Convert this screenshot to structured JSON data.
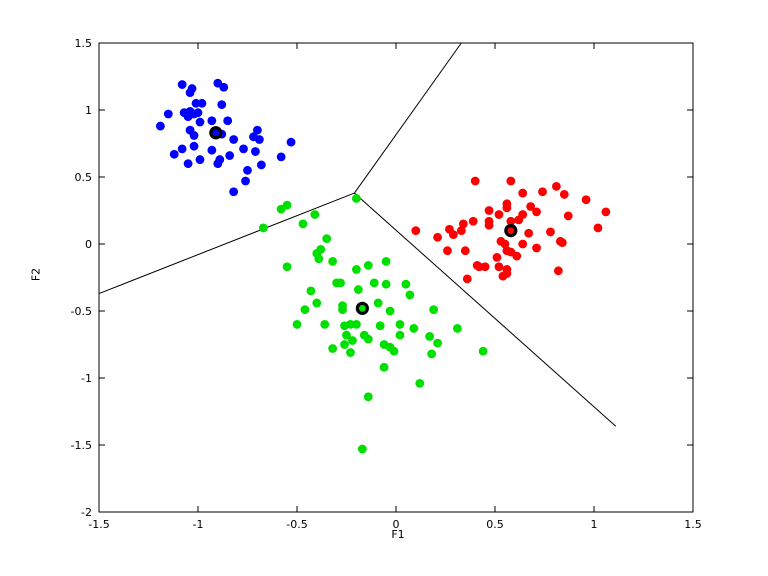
{
  "figure": {
    "background_color": "#ffffff",
    "frame_color": "#000000",
    "boundary_line_color": "#000000"
  },
  "chart_data": {
    "type": "scatter",
    "title": "",
    "xlabel": "F1",
    "ylabel": "F2",
    "xlim": [
      -1.5,
      1.5
    ],
    "ylim": [
      -2,
      1.5
    ],
    "grid": false,
    "legend": "none",
    "x_ticks": [
      -1.5,
      -1,
      -0.5,
      0,
      0.5,
      1,
      1.5
    ],
    "x_tick_labels": [
      "-1.5",
      "-1",
      "-0.5",
      "0",
      "0.5",
      "1",
      "1.5"
    ],
    "y_ticks": [
      -2,
      -1.5,
      -1,
      -0.5,
      0,
      0.5,
      1,
      1.5
    ],
    "y_tick_labels": [
      "-2",
      "-1.5",
      "-1",
      "-0.5",
      "0",
      "0.5",
      "1",
      "1.5"
    ],
    "series": [
      {
        "name": "cluster-blue",
        "color": "#0000FF",
        "points": [
          [
            -1.08,
            1.19
          ],
          [
            -1.03,
            1.16
          ],
          [
            -1.04,
            1.13
          ],
          [
            -0.9,
            1.2
          ],
          [
            -0.87,
            1.17
          ],
          [
            -1.01,
            1.05
          ],
          [
            -0.98,
            1.05
          ],
          [
            -0.88,
            1.04
          ],
          [
            -1.07,
            0.98
          ],
          [
            -1.04,
            0.99
          ],
          [
            -1.02,
            0.97
          ],
          [
            -1.05,
            0.95
          ],
          [
            -1.0,
            0.98
          ],
          [
            -1.15,
            0.97
          ],
          [
            -1.19,
            0.88
          ],
          [
            -0.99,
            0.91
          ],
          [
            -0.93,
            0.92
          ],
          [
            -0.85,
            0.92
          ],
          [
            -1.04,
            0.85
          ],
          [
            -1.02,
            0.81
          ],
          [
            -0.88,
            0.82
          ],
          [
            -0.82,
            0.78
          ],
          [
            -0.72,
            0.8
          ],
          [
            -0.7,
            0.85
          ],
          [
            -0.69,
            0.78
          ],
          [
            -0.53,
            0.76
          ],
          [
            -1.02,
            0.73
          ],
          [
            -1.08,
            0.71
          ],
          [
            -1.12,
            0.67
          ],
          [
            -0.93,
            0.7
          ],
          [
            -0.84,
            0.66
          ],
          [
            -0.77,
            0.71
          ],
          [
            -0.71,
            0.69
          ],
          [
            -0.58,
            0.65
          ],
          [
            -1.05,
            0.6
          ],
          [
            -0.99,
            0.63
          ],
          [
            -0.89,
            0.63
          ],
          [
            -0.9,
            0.6
          ],
          [
            -0.75,
            0.55
          ],
          [
            -0.68,
            0.59
          ],
          [
            -0.76,
            0.47
          ],
          [
            -0.82,
            0.39
          ]
        ]
      },
      {
        "name": "cluster-green",
        "color": "#00E000",
        "points": [
          [
            -0.55,
            0.29
          ],
          [
            -0.58,
            0.26
          ],
          [
            -0.2,
            0.34
          ],
          [
            -0.41,
            0.22
          ],
          [
            -0.47,
            0.15
          ],
          [
            -0.67,
            0.12
          ],
          [
            -0.35,
            0.04
          ],
          [
            -0.38,
            -0.04
          ],
          [
            -0.4,
            -0.07
          ],
          [
            -0.39,
            -0.11
          ],
          [
            -0.32,
            -0.13
          ],
          [
            -0.55,
            -0.17
          ],
          [
            -0.2,
            -0.19
          ],
          [
            -0.14,
            -0.16
          ],
          [
            -0.05,
            -0.13
          ],
          [
            -0.28,
            -0.29
          ],
          [
            -0.3,
            -0.29
          ],
          [
            -0.19,
            -0.34
          ],
          [
            -0.11,
            -0.29
          ],
          [
            -0.05,
            -0.3
          ],
          [
            -0.43,
            -0.35
          ],
          [
            0.05,
            -0.3
          ],
          [
            0.07,
            -0.38
          ],
          [
            -0.4,
            -0.44
          ],
          [
            -0.46,
            -0.49
          ],
          [
            -0.27,
            -0.46
          ],
          [
            -0.27,
            -0.49
          ],
          [
            -0.09,
            -0.44
          ],
          [
            -0.03,
            -0.5
          ],
          [
            0.19,
            -0.49
          ],
          [
            -0.5,
            -0.6
          ],
          [
            -0.36,
            -0.6
          ],
          [
            -0.26,
            -0.61
          ],
          [
            -0.23,
            -0.6
          ],
          [
            -0.2,
            -0.6
          ],
          [
            -0.25,
            -0.68
          ],
          [
            -0.22,
            -0.72
          ],
          [
            -0.16,
            -0.68
          ],
          [
            -0.14,
            -0.71
          ],
          [
            -0.08,
            -0.61
          ],
          [
            0.02,
            -0.6
          ],
          [
            0.09,
            -0.63
          ],
          [
            0.02,
            -0.68
          ],
          [
            -0.32,
            -0.78
          ],
          [
            -0.26,
            -0.75
          ],
          [
            -0.23,
            -0.81
          ],
          [
            -0.06,
            -0.75
          ],
          [
            -0.03,
            -0.77
          ],
          [
            -0.01,
            -0.8
          ],
          [
            0.17,
            -0.69
          ],
          [
            0.21,
            -0.74
          ],
          [
            0.18,
            -0.82
          ],
          [
            0.31,
            -0.63
          ],
          [
            0.44,
            -0.8
          ],
          [
            -0.06,
            -0.92
          ],
          [
            0.12,
            -1.04
          ],
          [
            -0.14,
            -1.14
          ],
          [
            -0.17,
            -1.53
          ]
        ]
      },
      {
        "name": "cluster-red",
        "color": "#FF0000",
        "points": [
          [
            0.1,
            0.1
          ],
          [
            0.4,
            0.47
          ],
          [
            0.58,
            0.47
          ],
          [
            0.64,
            0.38
          ],
          [
            0.74,
            0.39
          ],
          [
            0.81,
            0.43
          ],
          [
            0.85,
            0.37
          ],
          [
            0.96,
            0.33
          ],
          [
            1.06,
            0.24
          ],
          [
            0.56,
            0.3
          ],
          [
            0.56,
            0.27
          ],
          [
            0.47,
            0.25
          ],
          [
            0.52,
            0.22
          ],
          [
            0.68,
            0.28
          ],
          [
            0.71,
            0.24
          ],
          [
            0.64,
            0.22
          ],
          [
            0.47,
            0.17
          ],
          [
            0.47,
            0.14
          ],
          [
            0.39,
            0.17
          ],
          [
            0.34,
            0.15
          ],
          [
            0.58,
            0.17
          ],
          [
            0.62,
            0.18
          ],
          [
            0.87,
            0.21
          ],
          [
            1.02,
            0.12
          ],
          [
            0.21,
            0.05
          ],
          [
            0.27,
            0.11
          ],
          [
            0.29,
            0.07
          ],
          [
            0.33,
            0.1
          ],
          [
            0.67,
            0.08
          ],
          [
            0.78,
            0.09
          ],
          [
            0.83,
            0.02
          ],
          [
            0.84,
            0.01
          ],
          [
            0.53,
            0.02
          ],
          [
            0.55,
            0.0
          ],
          [
            0.56,
            -0.05
          ],
          [
            0.58,
            -0.06
          ],
          [
            0.64,
            0.0
          ],
          [
            0.71,
            -0.03
          ],
          [
            0.61,
            -0.09
          ],
          [
            0.26,
            -0.05
          ],
          [
            0.35,
            -0.05
          ],
          [
            0.51,
            -0.1
          ],
          [
            0.41,
            -0.16
          ],
          [
            0.42,
            -0.17
          ],
          [
            0.45,
            -0.17
          ],
          [
            0.52,
            -0.17
          ],
          [
            0.56,
            -0.19
          ],
          [
            0.56,
            -0.22
          ],
          [
            0.82,
            -0.2
          ],
          [
            0.36,
            -0.26
          ],
          [
            0.54,
            -0.24
          ]
        ]
      }
    ],
    "centroids": [
      {
        "name": "centroid-blue",
        "x": -0.91,
        "y": 0.83,
        "color": "#0000FF"
      },
      {
        "name": "centroid-green",
        "x": -0.17,
        "y": -0.48,
        "color": "#00E000"
      },
      {
        "name": "centroid-red",
        "x": 0.58,
        "y": 0.1,
        "color": "#FF0000"
      }
    ],
    "boundary_lines": [
      {
        "x1": -0.21,
        "y1": 0.38,
        "x2": 0.33,
        "y2": 1.5
      },
      {
        "x1": -0.21,
        "y1": 0.38,
        "x2": -1.5,
        "y2": -0.37
      },
      {
        "x1": -0.21,
        "y1": 0.38,
        "x2": 1.11,
        "y2": -1.36
      }
    ]
  }
}
